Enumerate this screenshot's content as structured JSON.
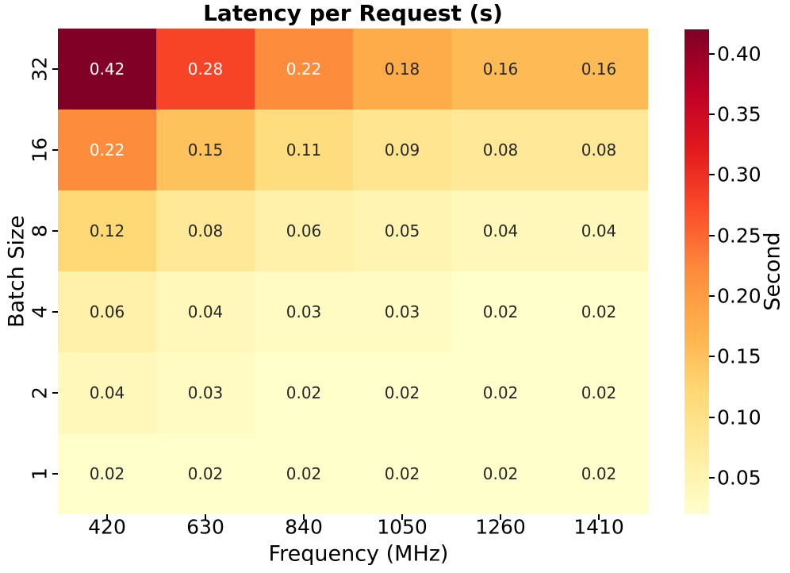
{
  "chart_data": {
    "type": "heatmap",
    "title": "Latency per Request (s)",
    "xlabel": "Frequency (MHz)",
    "ylabel": "Batch Size",
    "colorbar_label": "Second",
    "x_categories": [
      "420",
      "630",
      "840",
      "1050",
      "1260",
      "1410"
    ],
    "y_categories": [
      "32",
      "16",
      "8",
      "4",
      "2",
      "1"
    ],
    "values": [
      [
        0.42,
        0.28,
        0.22,
        0.18,
        0.16,
        0.16
      ],
      [
        0.22,
        0.15,
        0.11,
        0.09,
        0.08,
        0.08
      ],
      [
        0.12,
        0.08,
        0.06,
        0.05,
        0.04,
        0.04
      ],
      [
        0.06,
        0.04,
        0.03,
        0.03,
        0.02,
        0.02
      ],
      [
        0.04,
        0.03,
        0.02,
        0.02,
        0.02,
        0.02
      ],
      [
        0.02,
        0.02,
        0.02,
        0.02,
        0.02,
        0.02
      ]
    ],
    "value_decimals": 2,
    "vmin": 0.02,
    "vmax": 0.42,
    "colormap": "YlOrRd",
    "colormap_colors": [
      "#ffffcc",
      "#ffeda0",
      "#fed976",
      "#feb24c",
      "#fd8d3c",
      "#fc4e2a",
      "#e31a1c",
      "#bd0026",
      "#800026"
    ],
    "colorbar_ticks": [
      "0.05",
      "0.10",
      "0.15",
      "0.20",
      "0.25",
      "0.30",
      "0.35",
      "0.40"
    ],
    "annotation_colors": {
      "light": "#ffffff",
      "dark": "#262626"
    },
    "grid": false,
    "legend_position": "colorbar-right"
  }
}
